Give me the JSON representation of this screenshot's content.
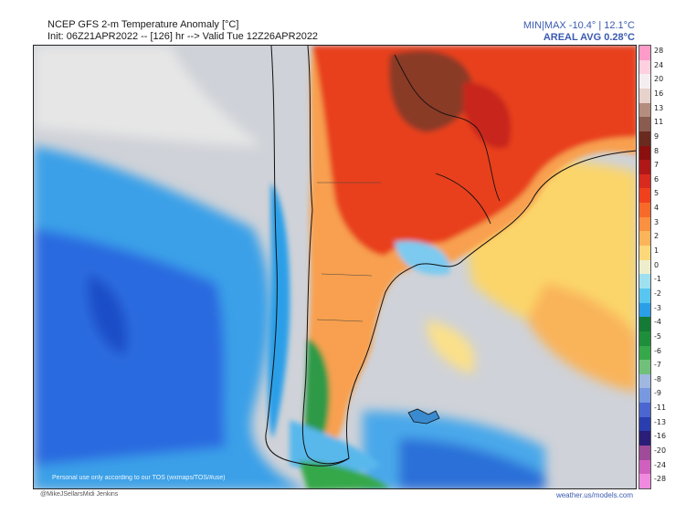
{
  "header": {
    "title": "NCEP GFS 2-m Temperature Anomaly [°C]",
    "init": "Init: 06Z21APR2022 -- [126] hr --> Valid Tue 12Z26APR2022",
    "minmax": "MIN|MAX -10.4° | 12.1°C",
    "areal_avg": "AREAL AVG 0.28°C"
  },
  "map": {
    "region": "South America (southern cone)",
    "disclaimer": "Personal use only according to our TOS (wxmaps/TOS/#use)",
    "footer_left": "@MikeJSellarsMidi Jenkins",
    "footer_right": "weather.us/models.com"
  },
  "colorbar": {
    "labels": [
      "28",
      "24",
      "20",
      "16",
      "13",
      "11",
      "9",
      "8",
      "7",
      "6",
      "5",
      "4",
      "3",
      "2",
      "1",
      "0",
      "-1",
      "-2",
      "-3",
      "-4",
      "-5",
      "-6",
      "-7",
      "-8",
      "-9",
      "-11",
      "-13",
      "-16",
      "-20",
      "-24",
      "-28"
    ],
    "colors": [
      "#ff9bc8",
      "#ffd0e0",
      "#f5eef0",
      "#e8d2cc",
      "#b48c80",
      "#8a5c50",
      "#6a2a20",
      "#8a1010",
      "#b01818",
      "#d82a1e",
      "#f0401e",
      "#f86a2a",
      "#fa9040",
      "#fbb45a",
      "#fcd87a",
      "#eeeecc",
      "#9fe0f0",
      "#58c6f0",
      "#2a9fe8",
      "#157a36",
      "#1f8e3a",
      "#36a84a",
      "#70c07a",
      "#a0b8e0",
      "#7898e0",
      "#4b66d0",
      "#2a3eb0",
      "#2a1e78",
      "#a04a9a",
      "#d060c0",
      "#f08ae0"
    ]
  }
}
